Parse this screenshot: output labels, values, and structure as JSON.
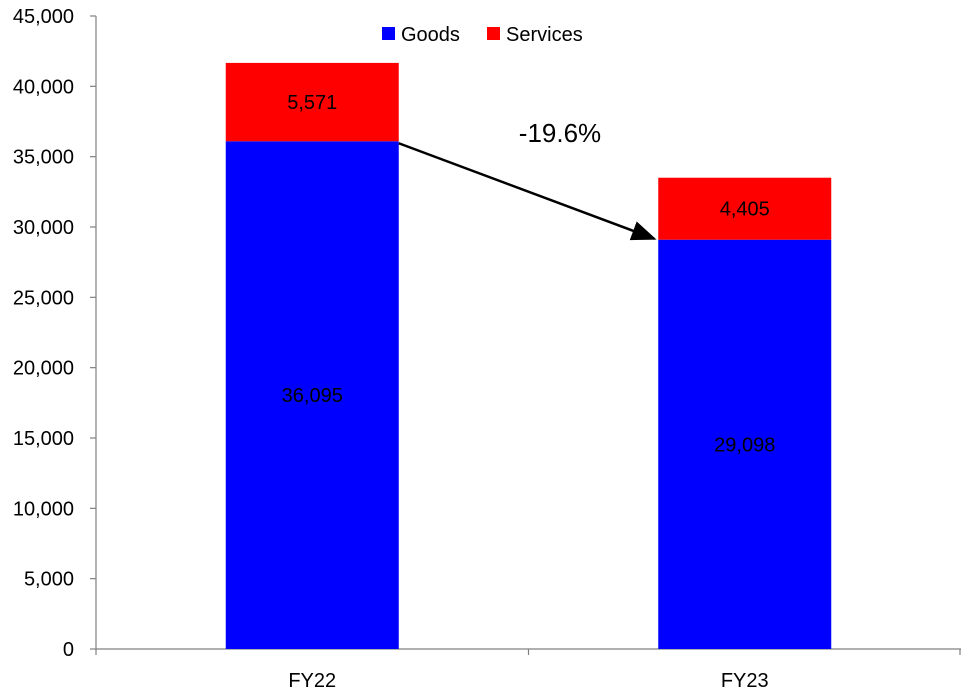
{
  "chart_data": {
    "type": "bar",
    "stacked": true,
    "categories": [
      "FY22",
      "FY23"
    ],
    "series": [
      {
        "name": "Goods",
        "values": [
          36095,
          29098
        ],
        "labels": [
          "36,095",
          "29,098"
        ],
        "color": "#0000FF"
      },
      {
        "name": "Services",
        "values": [
          5571,
          4405
        ],
        "labels": [
          "5,571",
          "4,405"
        ],
        "color": "#FF0000"
      }
    ],
    "ylim": [
      0,
      45000
    ],
    "yticks": [
      0,
      5000,
      10000,
      15000,
      20000,
      25000,
      30000,
      35000,
      40000,
      45000
    ],
    "ytick_labels": [
      "0",
      "5,000",
      "10,000",
      "15,000",
      "20,000",
      "25,000",
      "30,000",
      "35,000",
      "40,000",
      "45,000"
    ],
    "grid": false,
    "legend": "top-center",
    "annotation": {
      "text": "-19.6%",
      "from_category": "FY22",
      "to_category": "FY23",
      "arrow": true
    }
  }
}
